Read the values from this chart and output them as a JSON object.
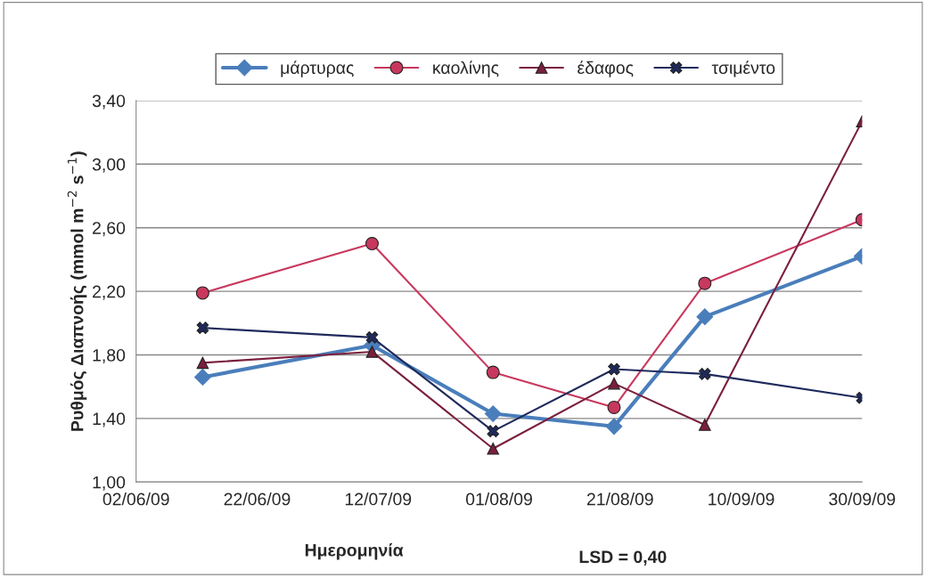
{
  "chart_data": {
    "type": "line",
    "xlabel": "Ημερομηνία",
    "ylabel": "Ρυθμός Διαπνοής (mmol m$^{−2}$ s$^{−1}$)",
    "annotations": [
      "LSD = 0,40"
    ],
    "x": [
      "2009-06-13",
      "2009-07-11",
      "2009-07-31",
      "2009-08-20",
      "2009-09-04",
      "2009-09-30"
    ],
    "series": [
      {
        "name": "μάρτυρας",
        "color": "#4a7ebb",
        "marker": "diamond",
        "values": [
          1.66,
          1.86,
          1.43,
          1.35,
          2.04,
          2.42
        ]
      },
      {
        "name": "καολίνης",
        "color": "#c8385e",
        "marker": "circle",
        "values": [
          2.19,
          2.5,
          1.69,
          1.47,
          2.25,
          2.65
        ]
      },
      {
        "name": "έδαφος",
        "color": "#7a1f3d",
        "marker": "triangle",
        "values": [
          1.75,
          1.82,
          1.21,
          1.62,
          1.36,
          3.27
        ]
      },
      {
        "name": "τσιμέντο",
        "color": "#1f2a5c",
        "marker": "cross",
        "values": [
          1.97,
          1.91,
          1.32,
          1.71,
          1.68,
          1.53
        ]
      }
    ],
    "xlim": [
      "2009-06-02",
      "2009-09-30"
    ],
    "xticks": [
      {
        "value": "2009-06-02",
        "label": "02/06/09"
      },
      {
        "value": "2009-06-22",
        "label": "22/06/09"
      },
      {
        "value": "2009-07-12",
        "label": "12/07/09"
      },
      {
        "value": "2009-08-01",
        "label": "01/08/09"
      },
      {
        "value": "2009-08-21",
        "label": "21/08/09"
      },
      {
        "value": "2009-09-10",
        "label": "10/09/09"
      },
      {
        "value": "2009-09-30",
        "label": "30/09/09"
      }
    ],
    "ylim": [
      1.0,
      3.4
    ],
    "yticks": [
      {
        "value": 1.0,
        "label": "1,00"
      },
      {
        "value": 1.4,
        "label": "1,40"
      },
      {
        "value": 1.8,
        "label": "1,80"
      },
      {
        "value": 2.2,
        "label": "2,20"
      },
      {
        "value": 2.6,
        "label": "2,60"
      },
      {
        "value": 3.0,
        "label": "3,00"
      },
      {
        "value": 3.4,
        "label": "3,40"
      }
    ],
    "grid": "y",
    "legend": "top",
    "line_style": "solid"
  }
}
